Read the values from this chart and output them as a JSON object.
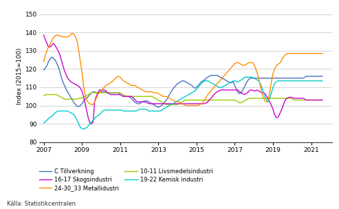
{
  "ylabel": "Index (2015=100)",
  "source": "Källa: Statistikcentralen",
  "ylim": [
    80,
    152
  ],
  "yticks": [
    80,
    90,
    100,
    110,
    120,
    130,
    140,
    150
  ],
  "xticks": [
    2007,
    2009,
    2011,
    2013,
    2015,
    2017,
    2019,
    2021
  ],
  "colors": {
    "C Tillverkning": "#4472C4",
    "10-11 Livsmedelsindustri": "#99CC00",
    "16-17 Skogsindustri": "#CC00CC",
    "19-22 Kemisk industri": "#00CCCC",
    "24-30_33 Metallidustri": "#FF8C00"
  },
  "legend_order": [
    "C Tillverkning",
    "16-17 Skogsindustri",
    "24-30_33 Metallidustri",
    "10-11 Livsmedelsindustri",
    "19-22 Kemisk industri"
  ],
  "series": {
    "C Tillverkning": [
      119.5,
      120.5,
      122.0,
      124.0,
      125.5,
      126.5,
      126.0,
      125.0,
      123.5,
      121.5,
      119.0,
      115.5,
      113.0,
      111.0,
      109.0,
      107.5,
      106.0,
      104.5,
      103.0,
      101.5,
      100.5,
      99.5,
      99.5,
      100.0,
      101.0,
      102.5,
      103.5,
      104.0,
      105.0,
      106.0,
      107.0,
      107.5,
      107.5,
      107.0,
      107.0,
      107.5,
      107.5,
      107.5,
      107.5,
      107.5,
      107.0,
      107.0,
      107.0,
      107.0,
      107.0,
      107.0,
      107.0,
      107.0,
      106.0,
      105.5,
      105.0,
      105.0,
      105.0,
      105.0,
      104.5,
      104.0,
      103.0,
      102.0,
      101.5,
      101.0,
      101.0,
      101.5,
      102.0,
      102.5,
      102.5,
      102.5,
      102.0,
      101.5,
      101.0,
      100.5,
      100.0,
      99.5,
      99.0,
      99.5,
      100.0,
      101.0,
      102.0,
      103.0,
      104.5,
      106.0,
      107.5,
      109.0,
      110.0,
      111.0,
      112.0,
      112.5,
      113.0,
      113.5,
      113.5,
      113.0,
      112.5,
      112.0,
      111.5,
      111.0,
      110.0,
      109.5,
      110.0,
      111.0,
      112.0,
      113.0,
      113.5,
      114.0,
      115.0,
      115.5,
      116.0,
      116.5,
      116.5,
      116.5,
      116.5,
      116.5,
      116.0,
      115.5,
      115.0,
      114.5,
      114.0,
      113.5,
      113.0,
      112.5,
      112.5,
      113.0,
      111.0,
      109.0,
      107.0,
      106.5,
      107.0,
      108.5,
      110.0,
      112.0,
      113.5,
      114.5,
      115.0,
      115.0,
      115.0,
      115.0,
      115.0,
      115.0,
      115.0,
      115.0,
      115.0,
      115.0,
      115.0,
      115.0,
      115.0,
      115.0,
      115.0,
      115.0,
      115.0,
      115.0,
      115.0,
      115.0,
      115.0,
      115.0,
      115.0,
      115.0,
      115.0,
      115.0,
      115.0,
      115.0,
      115.0,
      115.0,
      115.0,
      115.0,
      115.0,
      115.0,
      115.5,
      116.0
    ],
    "10-11 Livsmedelsindustri": [
      105.5,
      105.8,
      106.0,
      106.0,
      106.0,
      106.0,
      106.0,
      106.0,
      106.0,
      105.5,
      105.0,
      104.5,
      104.0,
      103.5,
      103.5,
      103.5,
      103.5,
      103.5,
      103.5,
      103.5,
      103.5,
      103.5,
      104.0,
      104.0,
      104.0,
      104.5,
      105.0,
      105.5,
      106.0,
      106.5,
      107.0,
      107.0,
      107.0,
      107.0,
      107.0,
      107.0,
      107.0,
      107.0,
      107.0,
      107.0,
      107.0,
      107.0,
      107.0,
      107.0,
      107.0,
      107.0,
      107.0,
      107.0,
      107.0,
      106.5,
      106.0,
      105.5,
      105.0,
      105.0,
      105.0,
      105.0,
      105.0,
      105.0,
      105.0,
      105.0,
      105.0,
      105.0,
      105.0,
      105.0,
      105.0,
      105.0,
      105.0,
      105.0,
      105.0,
      104.5,
      104.0,
      103.5,
      103.0,
      102.5,
      102.0,
      101.5,
      101.0,
      100.5,
      100.5,
      100.5,
      100.5,
      100.5,
      100.5,
      100.5,
      100.5,
      101.0,
      101.5,
      102.0,
      102.5,
      103.0,
      103.0,
      103.0,
      103.0,
      103.0,
      103.0,
      103.0,
      103.0,
      103.0,
      103.0,
      103.0,
      103.0,
      103.0,
      103.0,
      103.0,
      103.0,
      103.0,
      103.0,
      103.0,
      103.0,
      103.0,
      103.0,
      103.0,
      103.0,
      103.0,
      103.0,
      103.0,
      103.0,
      103.0,
      103.0,
      103.0,
      103.0,
      102.5,
      102.0,
      101.5,
      101.5,
      102.0,
      102.5,
      103.0,
      103.5,
      104.0,
      104.0,
      104.0,
      104.0,
      104.0,
      104.0,
      104.0,
      104.0,
      104.0,
      104.0,
      104.0,
      104.0,
      104.0,
      104.0,
      104.0,
      104.0,
      104.0,
      104.0,
      104.0,
      104.0,
      104.0,
      104.0,
      104.0,
      104.0,
      104.0,
      104.0,
      104.0,
      103.5,
      103.0,
      103.0,
      103.0,
      103.0,
      103.0,
      103.0,
      103.0,
      103.0,
      103.0
    ],
    "16-17 Skogsindustri": [
      138.5,
      136.0,
      134.0,
      132.0,
      132.0,
      133.0,
      134.0,
      133.0,
      131.5,
      130.0,
      128.0,
      125.0,
      122.0,
      119.0,
      117.0,
      115.0,
      114.0,
      113.0,
      112.5,
      112.0,
      111.5,
      111.0,
      110.5,
      109.5,
      108.0,
      105.0,
      101.0,
      97.0,
      93.0,
      90.5,
      90.0,
      91.0,
      102.5,
      105.0,
      107.0,
      108.5,
      108.5,
      108.5,
      108.5,
      108.0,
      107.0,
      106.5,
      106.0,
      106.0,
      106.0,
      106.0,
      106.0,
      106.0,
      106.0,
      105.5,
      105.0,
      105.0,
      105.0,
      105.0,
      105.0,
      105.0,
      104.5,
      103.5,
      102.5,
      102.0,
      102.0,
      102.0,
      102.0,
      102.0,
      102.0,
      101.5,
      101.0,
      101.0,
      101.0,
      101.0,
      101.0,
      101.0,
      101.0,
      101.0,
      101.0,
      101.0,
      101.0,
      101.0,
      101.0,
      101.0,
      101.0,
      101.0,
      101.0,
      101.0,
      101.0,
      101.0,
      101.0,
      101.0,
      101.0,
      101.0,
      101.0,
      101.0,
      101.0,
      101.0,
      101.0,
      101.0,
      101.0,
      101.0,
      101.0,
      101.0,
      101.0,
      101.0,
      101.5,
      102.0,
      103.0,
      104.0,
      105.0,
      106.0,
      107.0,
      107.5,
      108.0,
      108.5,
      108.5,
      108.5,
      108.5,
      108.5,
      108.5,
      108.5,
      108.5,
      108.5,
      108.5,
      108.5,
      108.5,
      107.5,
      107.0,
      106.5,
      106.0,
      106.5,
      107.0,
      108.0,
      108.5,
      108.5,
      108.0,
      108.0,
      108.5,
      108.0,
      107.5,
      107.0,
      107.0,
      106.5,
      105.0,
      103.5,
      102.0,
      100.0,
      98.0,
      95.0,
      93.5,
      93.5,
      95.0,
      97.0,
      99.0,
      101.5,
      103.5,
      104.0,
      104.5,
      104.5,
      104.5,
      104.0,
      104.0,
      104.0,
      104.0,
      104.0,
      104.0,
      104.0,
      103.5,
      103.0
    ],
    "19-22 Kemisk industri": [
      90.5,
      91.0,
      92.0,
      93.0,
      93.5,
      94.0,
      95.0,
      96.0,
      96.5,
      97.0,
      97.0,
      97.0,
      97.0,
      97.0,
      97.0,
      97.0,
      96.5,
      96.0,
      95.5,
      95.0,
      93.5,
      92.0,
      90.0,
      88.0,
      87.5,
      87.0,
      87.5,
      88.0,
      89.0,
      90.0,
      91.0,
      92.0,
      93.0,
      94.0,
      94.5,
      95.0,
      96.0,
      97.0,
      97.5,
      97.5,
      97.5,
      97.5,
      97.5,
      97.5,
      97.5,
      97.5,
      97.5,
      97.5,
      97.5,
      97.5,
      97.0,
      97.0,
      97.0,
      97.0,
      97.0,
      97.0,
      97.0,
      97.0,
      97.0,
      97.5,
      98.0,
      98.0,
      98.0,
      98.0,
      98.0,
      97.5,
      97.0,
      97.0,
      97.0,
      97.0,
      97.0,
      97.0,
      97.0,
      97.0,
      97.5,
      98.0,
      98.5,
      99.0,
      99.5,
      100.0,
      100.5,
      101.0,
      101.5,
      102.0,
      102.5,
      103.0,
      103.5,
      104.0,
      104.5,
      105.0,
      105.5,
      106.0,
      106.5,
      107.0,
      107.5,
      108.0,
      109.0,
      110.0,
      111.0,
      112.0,
      113.0,
      113.5,
      113.5,
      113.5,
      113.0,
      112.5,
      112.0,
      111.5,
      111.0,
      110.5,
      110.0,
      110.0,
      110.0,
      110.5,
      111.0,
      111.5,
      112.0,
      112.5,
      113.0,
      113.5,
      113.5,
      113.0,
      113.0,
      113.5,
      114.0,
      114.5,
      115.5,
      115.5,
      115.5,
      115.5,
      115.5,
      115.5,
      115.0,
      114.5,
      114.0,
      113.5,
      112.0,
      110.0,
      107.0,
      104.5,
      103.0,
      102.0,
      104.0,
      107.0,
      110.0,
      112.0,
      113.0,
      113.5,
      113.5,
      113.5,
      113.5,
      113.5,
      113.5,
      113.5,
      113.5,
      113.5,
      113.5,
      113.5,
      113.5,
      113.5,
      113.5,
      113.5,
      113.5,
      113.5,
      113.5,
      113.5
    ],
    "24-30_33 Metallidustri": [
      124.0,
      127.5,
      130.0,
      132.0,
      133.5,
      135.5,
      137.0,
      138.0,
      138.5,
      138.5,
      138.0,
      138.0,
      137.5,
      137.5,
      137.5,
      137.5,
      138.0,
      139.0,
      139.5,
      139.0,
      137.5,
      135.0,
      130.0,
      124.0,
      118.0,
      111.0,
      106.0,
      103.0,
      101.5,
      101.0,
      100.5,
      100.5,
      102.0,
      104.0,
      106.0,
      107.5,
      108.0,
      109.0,
      110.0,
      111.0,
      111.5,
      112.0,
      112.5,
      113.0,
      114.0,
      115.0,
      115.5,
      116.0,
      115.5,
      114.5,
      113.5,
      113.0,
      112.5,
      112.0,
      111.5,
      111.0,
      111.0,
      111.0,
      110.5,
      110.0,
      109.5,
      109.0,
      108.5,
      108.0,
      107.5,
      107.5,
      107.5,
      107.5,
      107.5,
      107.0,
      107.0,
      107.0,
      106.5,
      106.0,
      105.5,
      105.0,
      105.0,
      105.0,
      104.5,
      104.0,
      103.5,
      103.0,
      102.5,
      102.0,
      102.0,
      102.0,
      101.5,
      101.0,
      100.5,
      100.0,
      100.0,
      100.0,
      100.0,
      100.0,
      100.0,
      100.0,
      100.0,
      100.0,
      100.5,
      101.0,
      102.0,
      103.0,
      104.5,
      106.0,
      107.0,
      108.0,
      109.0,
      110.0,
      111.0,
      112.0,
      113.0,
      114.0,
      115.0,
      116.0,
      117.0,
      118.0,
      119.0,
      120.0,
      121.0,
      122.0,
      123.0,
      123.5,
      123.5,
      123.0,
      122.5,
      122.0,
      122.0,
      122.5,
      123.0,
      123.5,
      123.5,
      123.5,
      122.5,
      120.5,
      118.0,
      115.0,
      111.0,
      107.0,
      104.0,
      102.5,
      102.0,
      103.0,
      107.5,
      113.0,
      117.5,
      120.0,
      121.5,
      122.5,
      123.0,
      124.0,
      126.0,
      127.0,
      128.0,
      128.5,
      128.5,
      128.5,
      128.5,
      128.5,
      128.5,
      128.5,
      128.5,
      128.5,
      128.5,
      128.5,
      128.5,
      128.5
    ]
  }
}
